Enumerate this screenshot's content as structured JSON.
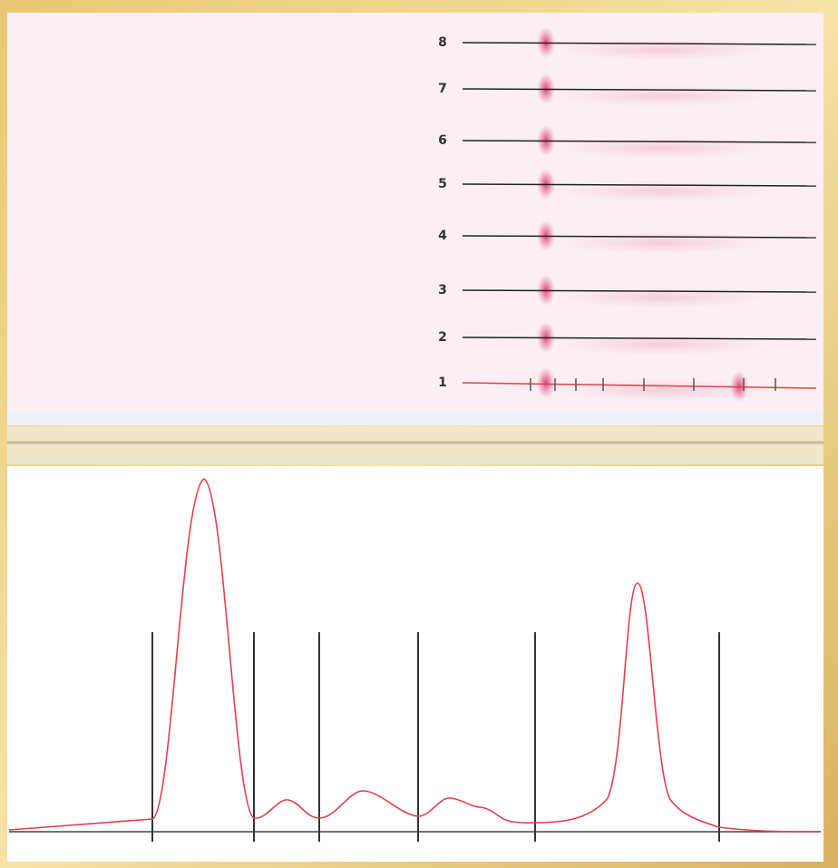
{
  "lane_labels": [
    "8",
    "7",
    "6",
    "5",
    "4",
    "3",
    "2",
    "1"
  ]
}
